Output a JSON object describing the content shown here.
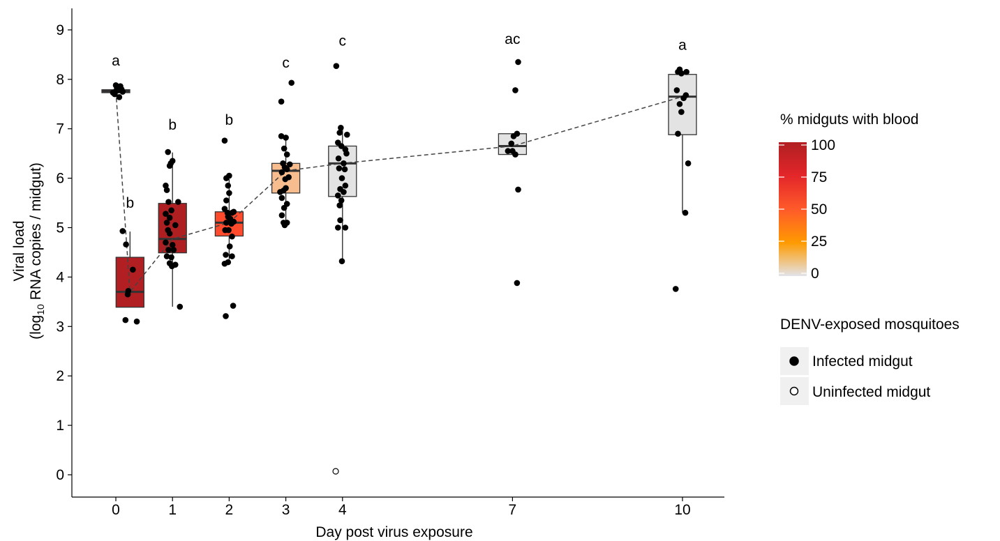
{
  "chart_data": {
    "type": "box",
    "xlabel": "Day post virus exposure",
    "ylabel_line1": "Viral load",
    "ylabel_line2_pre": "(log",
    "ylabel_line2_sub": "10",
    "ylabel_line2_post": " RNA copies / midgut)",
    "x_ticks": [
      0,
      1,
      2,
      3,
      4,
      7,
      10
    ],
    "y_ticks": [
      0,
      1,
      2,
      3,
      4,
      5,
      6,
      7,
      8,
      9
    ],
    "ylim": [
      -0.45,
      9.5
    ],
    "xlim": [
      -0.75,
      10.8
    ],
    "grid": false,
    "legend_position": "right",
    "color_legend": {
      "title": "% midguts with blood",
      "ticks": [
        0,
        25,
        50,
        75,
        100
      ],
      "gradient": [
        {
          "stop": 0,
          "color": "#e3e3e8"
        },
        {
          "stop": 25,
          "color": "#ff9a00"
        },
        {
          "stop": 50,
          "color": "#ff5a2a"
        },
        {
          "stop": 75,
          "color": "#e3262a"
        },
        {
          "stop": 100,
          "color": "#b01f22"
        }
      ]
    },
    "shape_legend": {
      "title": "DENV-exposed mosquitoes",
      "items": [
        {
          "label": "Infected midgut",
          "filled": true
        },
        {
          "label": "Uninfected midgut",
          "filled": false
        }
      ]
    },
    "boxes": [
      {
        "day": 0,
        "xpos": 0,
        "letter": "a",
        "letter_y": 8.28,
        "q1": 7.73,
        "median": 7.76,
        "q3": 7.79,
        "wmin": 7.7,
        "wmax": 7.82,
        "fill": "#4f2222",
        "points": [
          [
            0.0,
            7.76
          ],
          [
            -0.05,
            7.73
          ],
          [
            0.05,
            7.78
          ],
          [
            0.08,
            7.86
          ],
          [
            0.1,
            7.8
          ],
          [
            0.02,
            7.83
          ],
          [
            -0.02,
            7.7
          ],
          [
            0.12,
            7.75
          ],
          [
            0.06,
            7.64
          ],
          [
            0.0,
            7.88
          ]
        ]
      },
      {
        "day": 0,
        "xpos": 0.25,
        "letter": "b",
        "letter_y": 5.4,
        "q1": 3.39,
        "median": 3.7,
        "q3": 4.4,
        "wmin": 3.39,
        "wmax": 4.92,
        "fill": "#b11f22",
        "points": [
          [
            0.12,
            4.93
          ],
          [
            0.18,
            4.66
          ],
          [
            0.3,
            4.15
          ],
          [
            0.22,
            3.72
          ],
          [
            0.21,
            3.65
          ],
          [
            0.17,
            3.13
          ],
          [
            0.37,
            3.1
          ]
        ]
      },
      {
        "day": 1,
        "xpos": 1,
        "letter": "b",
        "letter_y": 6.98,
        "q1": 4.49,
        "median": 4.77,
        "q3": 5.49,
        "wmin": 3.4,
        "wmax": 6.52,
        "fill": "#ae1f22",
        "points": [
          [
            0.92,
            6.53
          ],
          [
            0.97,
            6.3
          ],
          [
            1.0,
            6.35
          ],
          [
            0.95,
            6.25
          ],
          [
            0.88,
            5.85
          ],
          [
            0.9,
            5.76
          ],
          [
            0.93,
            5.52
          ],
          [
            1.1,
            5.52
          ],
          [
            0.88,
            5.28
          ],
          [
            0.98,
            5.35
          ],
          [
            0.95,
            5.2
          ],
          [
            0.9,
            5.1
          ],
          [
            1.05,
            5.05
          ],
          [
            0.92,
            4.95
          ],
          [
            0.95,
            4.88
          ],
          [
            0.88,
            4.7
          ],
          [
            1.0,
            4.65
          ],
          [
            0.93,
            4.55
          ],
          [
            1.02,
            4.55
          ],
          [
            0.9,
            4.42
          ],
          [
            0.98,
            4.4
          ],
          [
            0.95,
            4.28
          ],
          [
            1.05,
            4.25
          ],
          [
            0.99,
            4.22
          ],
          [
            1.13,
            3.4
          ]
        ]
      },
      {
        "day": 2,
        "xpos": 2,
        "letter": "b",
        "letter_y": 7.08,
        "q1": 4.83,
        "median": 5.1,
        "q3": 5.32,
        "wmin": 4.27,
        "wmax": 5.98,
        "fill": "#ff4a2c",
        "points": [
          [
            1.92,
            6.76
          ],
          [
            1.95,
            6.0
          ],
          [
            2.0,
            6.05
          ],
          [
            1.98,
            5.85
          ],
          [
            2.0,
            5.7
          ],
          [
            1.95,
            5.55
          ],
          [
            1.92,
            5.38
          ],
          [
            1.97,
            5.3
          ],
          [
            2.05,
            5.3
          ],
          [
            2.08,
            5.32
          ],
          [
            1.98,
            5.22
          ],
          [
            2.02,
            5.18
          ],
          [
            1.95,
            5.1
          ],
          [
            2.04,
            5.08
          ],
          [
            2.08,
            5.12
          ],
          [
            1.93,
            4.95
          ],
          [
            1.99,
            4.95
          ],
          [
            2.05,
            4.82
          ],
          [
            2.01,
            4.62
          ],
          [
            1.94,
            4.45
          ],
          [
            2.05,
            4.42
          ],
          [
            1.98,
            4.3
          ],
          [
            1.92,
            4.27
          ],
          [
            2.07,
            3.42
          ],
          [
            1.94,
            3.21
          ]
        ]
      },
      {
        "day": 3,
        "xpos": 3,
        "letter": "c",
        "letter_y": 8.24,
        "q1": 5.7,
        "median": 6.15,
        "q3": 6.3,
        "wmin": 5.1,
        "wmax": 6.84,
        "fill": "#f8bd8f",
        "points": [
          [
            3.1,
            7.93
          ],
          [
            2.92,
            7.55
          ],
          [
            2.92,
            6.85
          ],
          [
            3.0,
            6.82
          ],
          [
            2.97,
            6.6
          ],
          [
            3.02,
            6.48
          ],
          [
            2.95,
            6.3
          ],
          [
            3.07,
            6.28
          ],
          [
            2.98,
            6.22
          ],
          [
            3.02,
            6.18
          ],
          [
            2.93,
            6.12
          ],
          [
            3.05,
            6.02
          ],
          [
            2.99,
            5.98
          ],
          [
            3.0,
            5.8
          ],
          [
            2.96,
            5.75
          ],
          [
            2.9,
            5.72
          ],
          [
            2.93,
            5.6
          ],
          [
            3.02,
            5.48
          ],
          [
            2.97,
            5.4
          ],
          [
            2.93,
            5.25
          ],
          [
            2.96,
            5.1
          ],
          [
            3.02,
            5.1
          ],
          [
            2.98,
            5.05
          ]
        ]
      },
      {
        "day": 4,
        "xpos": 4,
        "letter": "c",
        "letter_y": 8.68,
        "q1": 5.63,
        "median": 6.3,
        "q3": 6.65,
        "wmin": 4.32,
        "wmax": 7.0,
        "fill": "#e3e3e3",
        "points": [
          [
            3.89,
            8.27
          ],
          [
            3.97,
            7.02
          ],
          [
            3.95,
            6.92
          ],
          [
            4.08,
            6.88
          ],
          [
            3.92,
            6.72
          ],
          [
            3.98,
            6.65
          ],
          [
            4.05,
            6.58
          ],
          [
            4.07,
            6.5
          ],
          [
            3.93,
            6.4
          ],
          [
            4.02,
            6.3
          ],
          [
            3.94,
            6.2
          ],
          [
            4.04,
            6.18
          ],
          [
            3.99,
            6.0
          ],
          [
            4.05,
            5.85
          ],
          [
            3.96,
            5.78
          ],
          [
            4.02,
            5.72
          ],
          [
            3.92,
            5.65
          ],
          [
            3.98,
            5.55
          ],
          [
            3.95,
            5.45
          ],
          [
            3.96,
            5.15
          ],
          [
            4.05,
            5.0
          ],
          [
            3.92,
            5.0
          ],
          [
            3.99,
            4.32
          ]
        ],
        "uninfected": [
          [
            3.88,
            0.07
          ]
        ]
      },
      {
        "day": 7,
        "xpos": 7,
        "letter": "ac",
        "letter_y": 8.72,
        "q1": 6.48,
        "median": 6.65,
        "q3": 6.9,
        "wmin": 6.48,
        "wmax": 6.9,
        "fill": "#e3e3e3",
        "points": [
          [
            7.1,
            8.35
          ],
          [
            7.05,
            7.78
          ],
          [
            7.08,
            6.9
          ],
          [
            7.02,
            6.85
          ],
          [
            6.98,
            6.7
          ],
          [
            6.92,
            6.55
          ],
          [
            7.0,
            6.55
          ],
          [
            7.05,
            6.48
          ],
          [
            7.1,
            5.77
          ],
          [
            7.08,
            3.88
          ]
        ]
      },
      {
        "day": 10,
        "xpos": 10,
        "letter": "a",
        "letter_y": 8.6,
        "q1": 6.88,
        "median": 7.65,
        "q3": 8.1,
        "wmin": 5.3,
        "wmax": 8.18,
        "fill": "#e3e3e3",
        "points": [
          [
            9.92,
            8.15
          ],
          [
            9.95,
            8.2
          ],
          [
            9.98,
            8.12
          ],
          [
            10.07,
            8.15
          ],
          [
            9.9,
            7.78
          ],
          [
            10.06,
            7.68
          ],
          [
            10.02,
            7.62
          ],
          [
            9.95,
            7.5
          ],
          [
            9.98,
            7.34
          ],
          [
            9.92,
            6.9
          ],
          [
            10.1,
            6.3
          ],
          [
            10.05,
            5.3
          ],
          [
            9.88,
            3.76
          ]
        ]
      }
    ],
    "trend_line": [
      [
        0.0,
        7.76
      ],
      [
        0.25,
        3.7
      ],
      [
        1.0,
        4.77
      ],
      [
        2.0,
        5.1
      ],
      [
        3.0,
        6.15
      ],
      [
        4.0,
        6.3
      ],
      [
        7.0,
        6.65
      ],
      [
        10.0,
        7.65
      ]
    ]
  }
}
